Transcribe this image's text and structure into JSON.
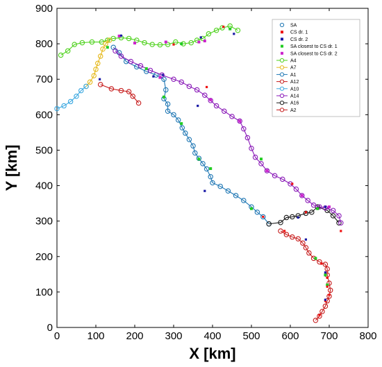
{
  "chart_data": {
    "type": "scatter",
    "xlabel": "X [km]",
    "ylabel": "Y [km]",
    "xlim": [
      0,
      800
    ],
    "ylim": [
      0,
      900
    ],
    "xticks": [
      0,
      100,
      200,
      300,
      400,
      500,
      600,
      700,
      800
    ],
    "yticks": [
      0,
      100,
      200,
      300,
      400,
      500,
      600,
      700,
      800,
      900
    ],
    "grid": false,
    "legend_position": "top-right",
    "legend": [
      {
        "label": "SA",
        "marker": "circle-open",
        "color": "#1f77b4"
      },
      {
        "label": "CS dr. 1",
        "marker": "square",
        "color": "#ee1111"
      },
      {
        "label": "CS dr. 2",
        "marker": "square",
        "color": "#1a1aa6"
      },
      {
        "label": "SA closest to CS dr. 1",
        "marker": "square",
        "color": "#22cc22"
      },
      {
        "label": "SA closest to CS dr. 2",
        "marker": "square",
        "color": "#cc22cc"
      },
      {
        "label": "A4",
        "marker": "circle-line",
        "color": "#4cd11a"
      },
      {
        "label": "A7",
        "marker": "circle-line",
        "color": "#e5b81a"
      },
      {
        "label": "A1",
        "marker": "circle-line",
        "color": "#1f77b4"
      },
      {
        "label": "A12",
        "marker": "circle-line",
        "color": "#c61a1a"
      },
      {
        "label": "A10",
        "marker": "circle-line",
        "color": "#39a7e0"
      },
      {
        "label": "A14",
        "marker": "circle-line",
        "color": "#8a1ab8"
      },
      {
        "label": "A16",
        "marker": "circle-line",
        "color": "#1a1a1a"
      },
      {
        "label": "A2",
        "marker": "circle-line",
        "color": "#c61a1a"
      }
    ],
    "series": [
      {
        "name": "A4",
        "color": "#4cd11a",
        "points": [
          [
            10,
            768
          ],
          [
            28,
            780
          ],
          [
            45,
            798
          ],
          [
            65,
            803
          ],
          [
            90,
            805
          ],
          [
            115,
            805
          ],
          [
            130,
            810
          ],
          [
            145,
            815
          ],
          [
            165,
            817
          ],
          [
            185,
            815
          ],
          [
            205,
            810
          ],
          [
            225,
            803
          ],
          [
            245,
            798
          ],
          [
            265,
            797
          ],
          [
            285,
            798
          ],
          [
            305,
            805
          ],
          [
            325,
            800
          ],
          [
            345,
            803
          ],
          [
            360,
            810
          ],
          [
            375,
            815
          ],
          [
            390,
            828
          ],
          [
            410,
            838
          ],
          [
            425,
            845
          ],
          [
            445,
            850
          ],
          [
            465,
            838
          ]
        ]
      },
      {
        "name": "A7",
        "color": "#e5b81a",
        "points": [
          [
            75,
            680
          ],
          [
            85,
            692
          ],
          [
            95,
            710
          ],
          [
            100,
            728
          ],
          [
            105,
            745
          ],
          [
            112,
            765
          ],
          [
            118,
            785
          ],
          [
            125,
            800
          ],
          [
            135,
            810
          ]
        ]
      },
      {
        "name": "A10",
        "color": "#39a7e0",
        "points": [
          [
            0,
            617
          ],
          [
            18,
            625
          ],
          [
            35,
            637
          ],
          [
            50,
            652
          ],
          [
            62,
            668
          ],
          [
            75,
            680
          ]
        ]
      },
      {
        "name": "A12",
        "color": "#c61a1a",
        "points": [
          [
            112,
            685
          ],
          [
            140,
            673
          ],
          [
            165,
            668
          ],
          [
            185,
            665
          ],
          [
            195,
            652
          ],
          [
            210,
            633
          ]
        ]
      },
      {
        "name": "A1",
        "color": "#1f77b4",
        "points": [
          [
            145,
            790
          ],
          [
            160,
            775
          ],
          [
            178,
            750
          ],
          [
            205,
            735
          ],
          [
            230,
            722
          ],
          [
            255,
            712
          ],
          [
            275,
            700
          ],
          [
            280,
            670
          ],
          [
            275,
            645
          ],
          [
            285,
            630
          ],
          [
            285,
            610
          ],
          [
            300,
            600
          ],
          [
            312,
            585
          ],
          [
            322,
            563
          ],
          [
            330,
            548
          ],
          [
            340,
            530
          ],
          [
            350,
            512
          ],
          [
            355,
            492
          ],
          [
            365,
            477
          ],
          [
            375,
            462
          ],
          [
            385,
            447
          ],
          [
            395,
            425
          ],
          [
            400,
            408
          ],
          [
            420,
            398
          ],
          [
            440,
            385
          ],
          [
            460,
            372
          ],
          [
            480,
            358
          ],
          [
            500,
            340
          ],
          [
            515,
            325
          ],
          [
            530,
            312
          ],
          [
            545,
            292
          ]
        ]
      },
      {
        "name": "A16",
        "color": "#1a1a1a",
        "points": [
          [
            545,
            292
          ],
          [
            575,
            296
          ],
          [
            590,
            310
          ],
          [
            605,
            312
          ],
          [
            620,
            315
          ],
          [
            640,
            322
          ],
          [
            655,
            325
          ],
          [
            670,
            340
          ],
          [
            695,
            330
          ],
          [
            710,
            315
          ],
          [
            725,
            295
          ]
        ]
      },
      {
        "name": "A14",
        "color": "#8a1ab8",
        "points": [
          [
            150,
            780
          ],
          [
            165,
            765
          ],
          [
            190,
            750
          ],
          [
            215,
            738
          ],
          [
            240,
            725
          ],
          [
            270,
            712
          ],
          [
            300,
            700
          ],
          [
            320,
            692
          ],
          [
            340,
            680
          ],
          [
            360,
            670
          ],
          [
            380,
            655
          ],
          [
            395,
            640
          ],
          [
            410,
            625
          ],
          [
            430,
            610
          ],
          [
            450,
            595
          ],
          [
            470,
            582
          ],
          [
            480,
            560
          ],
          [
            490,
            535
          ],
          [
            500,
            505
          ],
          [
            510,
            480
          ],
          [
            525,
            462
          ],
          [
            540,
            442
          ],
          [
            560,
            428
          ],
          [
            580,
            418
          ],
          [
            600,
            405
          ],
          [
            615,
            390
          ],
          [
            630,
            372
          ],
          [
            645,
            358
          ],
          [
            660,
            345
          ],
          [
            675,
            340
          ],
          [
            690,
            337
          ],
          [
            710,
            330
          ],
          [
            725,
            315
          ],
          [
            730,
            295
          ]
        ]
      },
      {
        "name": "A2",
        "color": "#c61a1a",
        "points": [
          [
            575,
            272
          ],
          [
            590,
            262
          ],
          [
            605,
            255
          ],
          [
            620,
            250
          ],
          [
            632,
            238
          ],
          [
            640,
            225
          ],
          [
            648,
            210
          ],
          [
            660,
            195
          ],
          [
            675,
            185
          ],
          [
            690,
            178
          ],
          [
            695,
            165
          ],
          [
            695,
            148
          ],
          [
            700,
            125
          ],
          [
            703,
            105
          ],
          [
            700,
            88
          ],
          [
            695,
            75
          ],
          [
            690,
            60
          ],
          [
            682,
            45
          ],
          [
            675,
            32
          ],
          [
            665,
            20
          ]
        ]
      }
    ],
    "cs_dr1": [
      [
        385,
        678
      ],
      [
        300,
        798
      ],
      [
        428,
        848
      ],
      [
        680,
        180
      ],
      [
        695,
        140
      ],
      [
        695,
        115
      ],
      [
        700,
        92
      ],
      [
        690,
        75
      ],
      [
        675,
        35
      ],
      [
        730,
        272
      ],
      [
        605,
        405
      ],
      [
        640,
        325
      ],
      [
        530,
        312
      ],
      [
        585,
        272
      ]
    ],
    "cs_dr2": [
      [
        165,
        823
      ],
      [
        370,
        818
      ],
      [
        272,
        712
      ],
      [
        248,
        708
      ],
      [
        455,
        828
      ],
      [
        362,
        625
      ],
      [
        380,
        385
      ],
      [
        640,
        248
      ],
      [
        620,
        310
      ],
      [
        690,
        340
      ],
      [
        690,
        78
      ],
      [
        690,
        155
      ],
      [
        110,
        700
      ]
    ],
    "sa_closest_dr1": [
      [
        130,
        790
      ],
      [
        230,
        730
      ],
      [
        275,
        650
      ],
      [
        320,
        575
      ],
      [
        365,
        475
      ],
      [
        395,
        448
      ],
      [
        500,
        335
      ],
      [
        670,
        335
      ],
      [
        690,
        148
      ],
      [
        695,
        120
      ],
      [
        665,
        195
      ],
      [
        525,
        475
      ],
      [
        445,
        842
      ],
      [
        320,
        800
      ]
    ],
    "sa_closest_dr2": [
      [
        160,
        822
      ],
      [
        200,
        802
      ],
      [
        280,
        805
      ],
      [
        365,
        805
      ],
      [
        380,
        808
      ],
      [
        265,
        705
      ],
      [
        540,
        442
      ],
      [
        630,
        372
      ],
      [
        470,
        582
      ],
      [
        395,
        642
      ],
      [
        700,
        340
      ]
    ]
  }
}
